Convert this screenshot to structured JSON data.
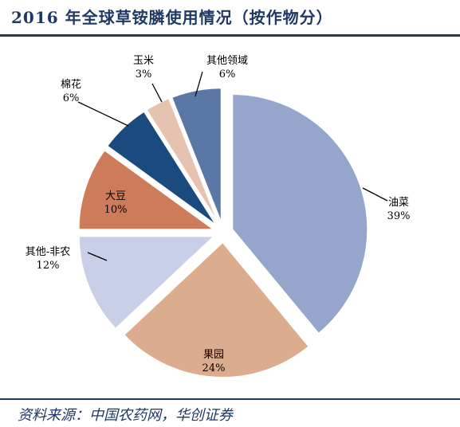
{
  "title": "2016 年全球草铵膦使用情况（按作物分）",
  "source": "资料来源：中国农药网，华创证券",
  "colors": {
    "title": "#1f3864",
    "rule": "#1f3864"
  },
  "chart_data": {
    "type": "pie",
    "title": "2016 年全球草铵膦使用情况（按作物分）",
    "exploded": true,
    "slices": [
      {
        "name": "油菜",
        "value": 39,
        "label": "39%",
        "color": "#95a5cb"
      },
      {
        "name": "果园",
        "value": 24,
        "label": "24%",
        "color": "#dbac8d"
      },
      {
        "name": "其他-非农",
        "value": 12,
        "label": "12%",
        "color": "#c9cfe6"
      },
      {
        "name": "大豆",
        "value": 10,
        "label": "10%",
        "color": "#cd7b5b"
      },
      {
        "name": "棉花",
        "value": 6,
        "label": "6%",
        "color": "#1b4a7e"
      },
      {
        "name": "玉米",
        "value": 3,
        "label": "3%",
        "color": "#e6c3b0"
      },
      {
        "name": "其他领域",
        "value": 6,
        "label": "6%",
        "color": "#5b77a6"
      }
    ]
  }
}
